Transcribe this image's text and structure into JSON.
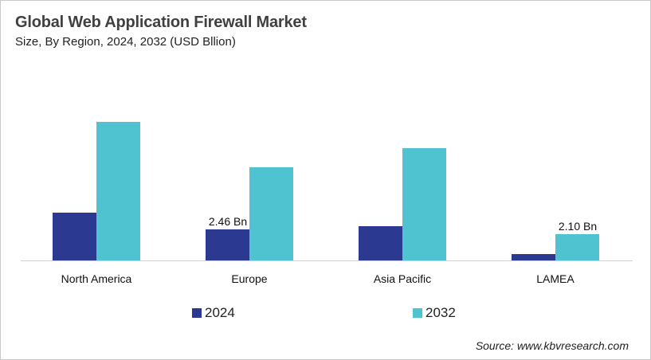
{
  "title": "Global Web Application Firewall Market",
  "subtitle": "Size, By Region, 2024, 2032 (USD Bllion)",
  "source": "Source: www.kbvresearch.com",
  "colors": {
    "2024": "#2b3990",
    "2032": "#4fc3cf"
  },
  "legend": [
    {
      "label": "2024",
      "color": "#2b3990"
    },
    {
      "label": "2032",
      "color": "#4fc3cf"
    }
  ],
  "chart_data": {
    "type": "bar",
    "title": "Global Web Application Firewall Market",
    "subtitle": "Size, By Region, 2024, 2032 (USD Bllion)",
    "xlabel": "",
    "ylabel": "USD Billion",
    "categories": [
      "North America",
      "Europe",
      "Asia Pacific",
      "LAMEA"
    ],
    "series": [
      {
        "name": "2024",
        "values": [
          3.78,
          2.46,
          2.7,
          0.5
        ],
        "color": "#2b3990"
      },
      {
        "name": "2032",
        "values": [
          10.95,
          7.36,
          8.87,
          2.1
        ],
        "color": "#4fc3cf"
      }
    ],
    "data_labels": [
      {
        "category": "Europe",
        "series": "2024",
        "text": "2.46 Bn"
      },
      {
        "category": "LAMEA",
        "series": "2032",
        "text": "2.10 Bn"
      }
    ],
    "ylim": [
      0,
      14.3
    ],
    "grid": false,
    "y_axis_visible": false,
    "legend_position": "bottom"
  }
}
